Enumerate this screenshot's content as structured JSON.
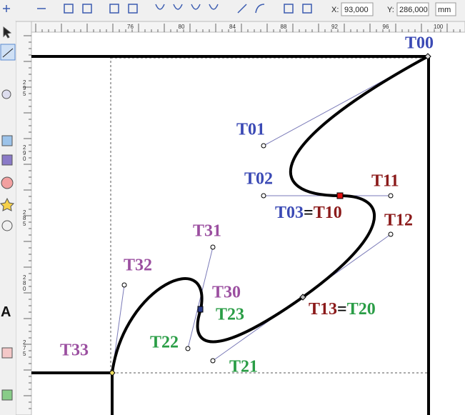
{
  "toolbar": {
    "x_label": "X:",
    "x_value": "93,000",
    "y_label": "Y:",
    "y_value": "286,000",
    "unit": "mm"
  },
  "ruler": {
    "top": [
      "76",
      "80",
      "84",
      "88",
      "92",
      "96",
      "100"
    ],
    "left": [
      "295",
      "290",
      "285",
      "280",
      "275"
    ]
  },
  "labels": {
    "t00": "T00",
    "t01": "T01",
    "t02": "T02",
    "t03_t10": [
      "T03",
      "=",
      "T10"
    ],
    "t11": "T11",
    "t12": "T12",
    "t13_t20": [
      "T13",
      "=",
      "T20"
    ],
    "t21": "T21",
    "t22": "T22",
    "t23": "T23",
    "t30": "T30",
    "t31": "T31",
    "t32": "T32",
    "t33": "T33"
  }
}
